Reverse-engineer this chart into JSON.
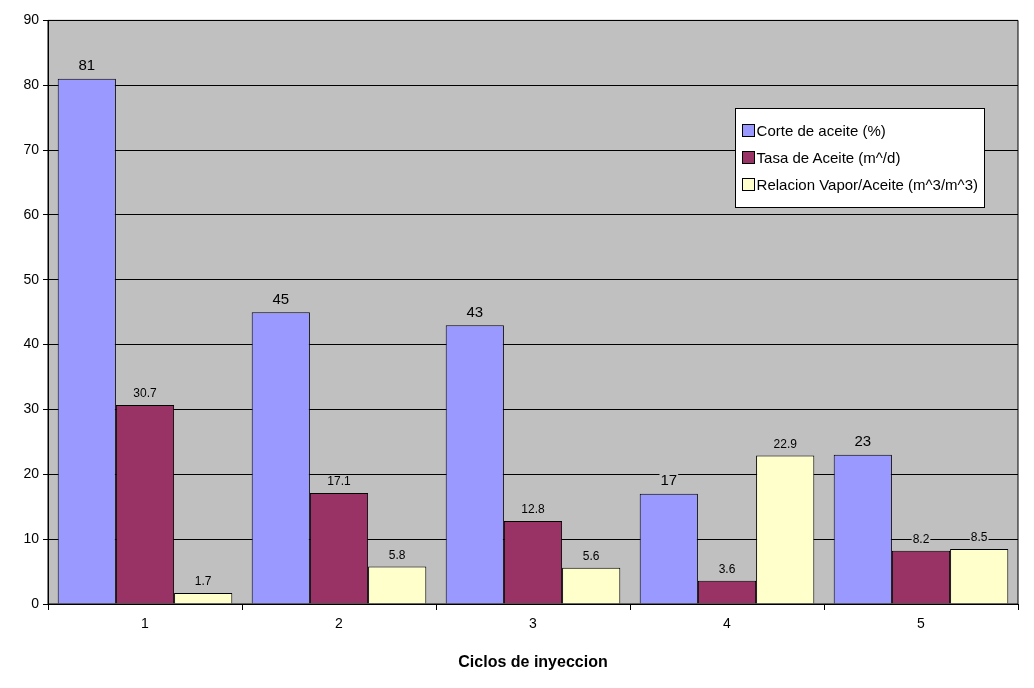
{
  "chart_data": {
    "type": "bar",
    "xlabel": "Ciclos de inyeccion",
    "categories": [
      "1",
      "2",
      "3",
      "4",
      "5"
    ],
    "series": [
      {
        "name": "Corte de aceite (%)",
        "color": "#9999ff",
        "values": [
          81,
          45,
          43,
          17,
          23
        ]
      },
      {
        "name": "Tasa de Aceite (m^/d)",
        "color": "#993366",
        "values": [
          30.7,
          17.1,
          12.8,
          3.6,
          8.2
        ]
      },
      {
        "name": "Relacion Vapor/Aceite (m^3/m^3)",
        "color": "#ffffcc",
        "values": [
          1.7,
          5.8,
          5.6,
          22.9,
          8.5
        ]
      }
    ],
    "ylim": [
      0,
      90
    ],
    "yticks": [
      0,
      10,
      20,
      30,
      40,
      50,
      60,
      70,
      80,
      90
    ],
    "grid": "y",
    "legend": "top right",
    "data_labels": true
  }
}
